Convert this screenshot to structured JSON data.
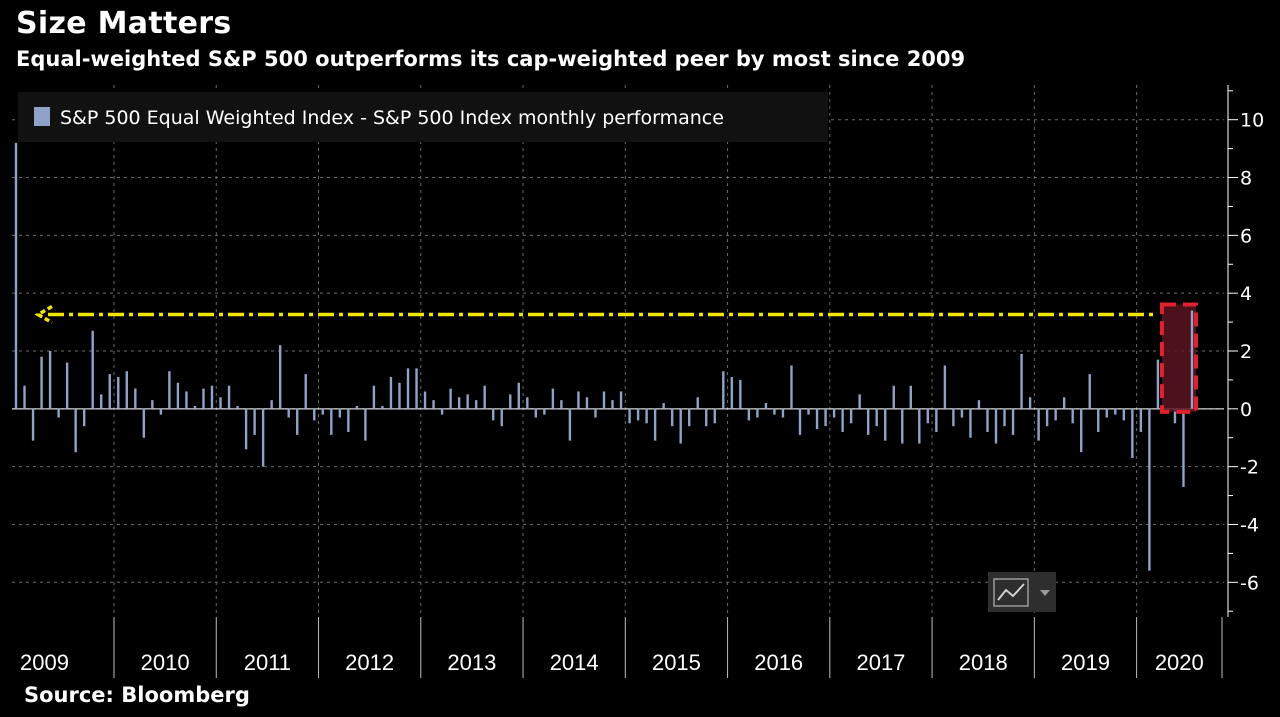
{
  "title": "Size Matters",
  "subtitle": "Equal-weighted S&P 500 outperforms its cap-weighted peer by most since 2009",
  "source": "Source: Bloomberg",
  "colors": {
    "bar": "#8fa3c9",
    "grid": "#6b6b6b",
    "arrow": "#f2e600",
    "highlight_fill": "#5a1420",
    "highlight_stroke": "#e0202e",
    "legend_bg": "#111111"
  },
  "icons": {
    "chart_type_toggle": "line-chart-icon",
    "dropdown": "triangle-down-icon"
  },
  "chart_data": {
    "type": "bar",
    "title": "Size Matters",
    "subtitle": "Equal-weighted S&P 500 outperforms its cap-weighted peer by most since 2009",
    "legend": [
      "S&P 500 Equal Weighted Index - S&P 500 Index monthly performance"
    ],
    "legend_position": "top-left",
    "y_axis_position": "right",
    "grid": true,
    "ylim": [
      -7.2,
      11.2
    ],
    "yticks": [
      10,
      8,
      6,
      4,
      2,
      0,
      -2,
      -4,
      -6
    ],
    "x_start": "2009-01",
    "x_end": "2020-07",
    "year_labels": [
      "2009",
      "2010",
      "2011",
      "2012",
      "2013",
      "2014",
      "2015",
      "2016",
      "2017",
      "2018",
      "2019",
      "2020"
    ],
    "annotation": {
      "type": "dashed-arrow",
      "value": 3.4,
      "points_to": "2009"
    },
    "highlight_month": "2020-07",
    "series": [
      {
        "name": "S&P 500 Equal Weighted Index - S&P 500 Index monthly performance",
        "values": [
          9.2,
          0.8,
          -1.1,
          1.8,
          2.0,
          -0.3,
          1.6,
          -1.5,
          -0.6,
          2.7,
          0.5,
          1.2,
          1.1,
          1.3,
          0.7,
          -1.0,
          0.3,
          -0.2,
          1.3,
          0.9,
          0.6,
          0.1,
          0.7,
          0.8,
          0.4,
          0.8,
          0.1,
          -1.4,
          -0.9,
          -2.0,
          0.3,
          2.2,
          -0.3,
          -0.9,
          1.2,
          -0.4,
          -0.2,
          -0.9,
          -0.3,
          -0.8,
          0.1,
          -1.1,
          0.8,
          0.1,
          1.1,
          0.9,
          1.4,
          1.4,
          0.6,
          0.3,
          -0.2,
          0.7,
          0.4,
          0.5,
          0.3,
          0.8,
          -0.4,
          -0.6,
          0.5,
          0.9,
          0.4,
          -0.3,
          -0.2,
          0.7,
          0.3,
          -1.1,
          0.6,
          0.4,
          -0.3,
          0.6,
          0.3,
          0.6,
          -0.5,
          -0.4,
          -0.5,
          -1.1,
          0.2,
          -0.6,
          -1.2,
          -0.6,
          0.4,
          -0.6,
          -0.5,
          1.3,
          1.1,
          1.0,
          -0.4,
          -0.3,
          0.2,
          -0.2,
          -0.3,
          1.5,
          -0.9,
          -0.2,
          -0.7,
          -0.6,
          -0.3,
          -0.8,
          -0.5,
          0.5,
          -0.9,
          -0.6,
          -1.1,
          0.8,
          -1.2,
          0.8,
          -1.2,
          -0.5,
          -0.8,
          1.5,
          -0.6,
          -0.3,
          -1.0,
          0.3,
          -0.8,
          -1.2,
          -0.6,
          -0.9,
          1.9,
          0.4,
          -1.1,
          -0.6,
          -0.4,
          0.4,
          -0.5,
          -1.5,
          1.2,
          -0.8,
          -0.3,
          -0.2,
          -0.4,
          -1.7,
          -0.8,
          -5.6,
          1.7,
          -0.1,
          -0.5,
          -2.7,
          3.4
        ]
      }
    ]
  }
}
